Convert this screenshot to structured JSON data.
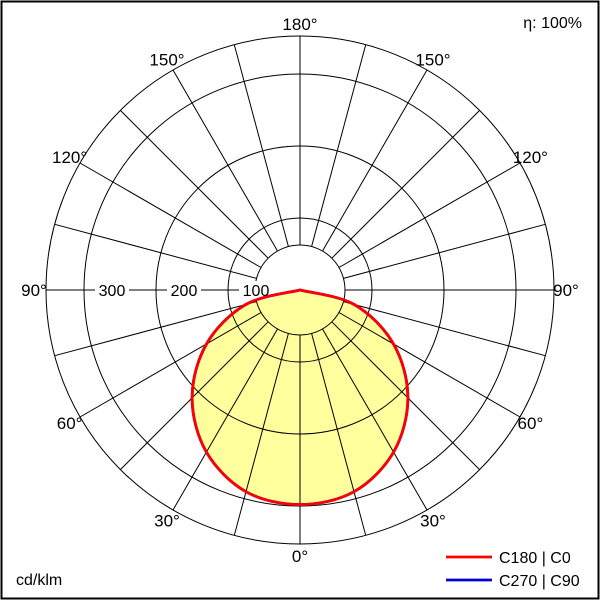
{
  "header": {
    "efficiency": "η: 100%"
  },
  "footer": {
    "unit": "cd/klm"
  },
  "legend": {
    "items": [
      {
        "label": "C180 | C0",
        "color": "#ff0000"
      },
      {
        "label": "C270 | C90",
        "color": "#0000dd"
      }
    ]
  },
  "chart_data": {
    "type": "polar",
    "kind": "luminous-intensity-distribution",
    "unit": "cd/klm",
    "efficiency_percent": 100,
    "grid_step_deg": 15,
    "angle_ticks_deg": [
      0,
      30,
      60,
      90,
      120,
      150,
      180
    ],
    "angle_tick_labels": [
      "0°",
      "30°",
      "60°",
      "90°",
      "120°",
      "150°",
      "180°"
    ],
    "radial_ticks": [
      100,
      200,
      300
    ],
    "radial_tick_labels": [
      "100",
      "200",
      "300"
    ],
    "radial_max": 350,
    "fill_color": "#ffff9e",
    "series": [
      {
        "name": "C180 | C0",
        "color": "#ff0000",
        "angles_deg": [
          -90,
          -75,
          -60,
          -45,
          -30,
          -15,
          0,
          15,
          30,
          45,
          60,
          75,
          90
        ],
        "values_cd_per_klm": [
          0,
          78,
          150,
          212,
          260,
          290,
          298,
          290,
          260,
          212,
          150,
          78,
          0
        ]
      },
      {
        "name": "C270 | C90",
        "color": "#0000dd",
        "angles_deg": [
          -90,
          -75,
          -60,
          -45,
          -30,
          -15,
          0,
          15,
          30,
          45,
          60,
          75,
          90
        ],
        "values_cd_per_klm": [
          0,
          78,
          150,
          212,
          260,
          290,
          298,
          290,
          260,
          212,
          150,
          78,
          0
        ]
      }
    ]
  }
}
